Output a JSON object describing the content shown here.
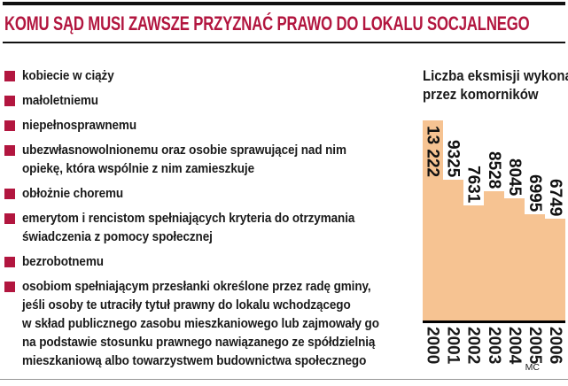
{
  "header": {
    "title": "KOMU SĄD MUSI ZAWSZE PRZYZNAĆ PRAWO DO LOKALU SOCJALNEGO"
  },
  "list": {
    "items": [
      {
        "lines": [
          "kobiecie w ciąży"
        ]
      },
      {
        "lines": [
          "małoletniemu"
        ]
      },
      {
        "lines": [
          "niepełnosprawnemu"
        ]
      },
      {
        "lines": [
          "ubezwłasnowolnionemu oraz osobie sprawującej nad nim",
          "opiekę, która wspólnie z nim zamieszkuje"
        ]
      },
      {
        "lines": [
          "obłożnie choremu"
        ]
      },
      {
        "lines": [
          "emerytom i rencistom spełniających kryteria do otrzymania",
          "świadczenia z pomocy społecznej"
        ]
      },
      {
        "lines": [
          "bezrobotnemu"
        ]
      },
      {
        "lines": [
          "osobiom spełniającym przesłanki określone przez radę gminy,",
          "jeśli osoby te utraciły tytuł prawny do lokalu wchodzącego",
          "w skład publicznego zasobu mieszkaniowego lub zajmowały go",
          "na podstawie stosunku prawnego nawiązanego ze spółdzielnią",
          "mieszkaniową albo towarzystwem budownictwa społecznego"
        ]
      }
    ]
  },
  "chart": {
    "title_lines": [
      "Liczba eksmisji wykonanych",
      "przez komorników"
    ]
  },
  "chart_data": {
    "type": "bar",
    "title": "Liczba eksmisji wykonanych przez komorników",
    "categories": [
      "2000",
      "2001",
      "2002",
      "2003",
      "2004",
      "2005",
      "2006"
    ],
    "values": [
      13222,
      9325,
      7631,
      8528,
      8045,
      6995,
      6749
    ],
    "value_labels": [
      "13 222",
      "9325",
      "7631",
      "8528",
      "8045",
      "6995",
      "6749"
    ],
    "label_positions": [
      "inside",
      "above",
      "above",
      "above",
      "above",
      "above",
      "above"
    ],
    "xlabel": "",
    "ylabel": "",
    "ylim": [
      0,
      13222
    ],
    "bar_color": "#f6c392",
    "grid": false,
    "legend": false,
    "label_orientation": "vertical-rotated-90deg"
  },
  "footer": {
    "credit": "MC"
  },
  "colors": {
    "accent_red": "#b2163f",
    "bar_orange": "#f6c392",
    "text": "#1a1a1a",
    "rule_black": "#111111",
    "rule_gray": "#979797"
  }
}
